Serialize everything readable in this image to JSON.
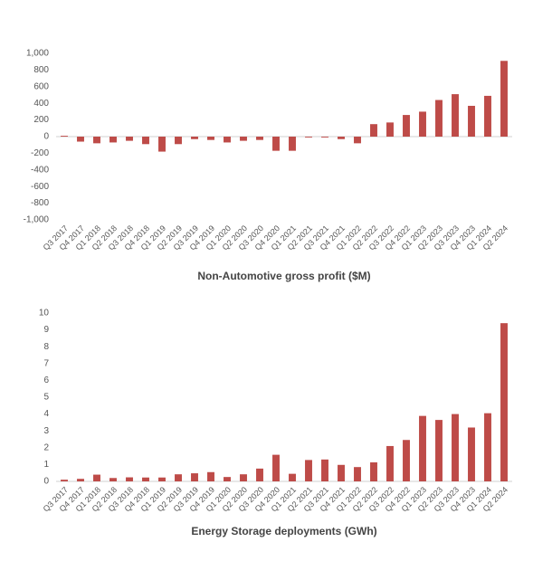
{
  "chart_data": [
    {
      "type": "bar",
      "title": "Non-Automotive gross profit ($M)",
      "categories": [
        "Q3 2017",
        "Q4 2017",
        "Q1 2018",
        "Q2 2018",
        "Q3 2018",
        "Q4 2018",
        "Q1 2019",
        "Q2 2019",
        "Q3 2019",
        "Q4 2019",
        "Q1 2020",
        "Q2 2020",
        "Q3 2020",
        "Q4 2020",
        "Q1 2021",
        "Q2 2021",
        "Q3 2021",
        "Q4 2021",
        "Q1 2022",
        "Q2 2022",
        "Q3 2022",
        "Q4 2022",
        "Q1 2023",
        "Q2 2023",
        "Q3 2023",
        "Q4 2023",
        "Q1 2024",
        "Q2 2024"
      ],
      "values": [
        10,
        -60,
        -80,
        -70,
        -50,
        -90,
        -180,
        -90,
        -30,
        -40,
        -70,
        -50,
        -40,
        -170,
        -170,
        -10,
        -10,
        -30,
        -80,
        150,
        170,
        260,
        300,
        440,
        510,
        370,
        490,
        910
      ],
      "color": "#be4b48",
      "ylim": [
        -1000,
        1000
      ],
      "yticks": [
        {
          "value": -1000,
          "label": "-1,000"
        },
        -800,
        -600,
        -400,
        -200,
        0,
        200,
        400,
        600,
        800,
        {
          "value": 1000,
          "label": "1,000"
        }
      ],
      "grid": false
    },
    {
      "type": "bar",
      "title": "Energy Storage deployments (GWh)",
      "categories": [
        "Q3 2017",
        "Q4 2017",
        "Q1 2018",
        "Q2 2018",
        "Q3 2018",
        "Q4 2018",
        "Q1 2019",
        "Q2 2019",
        "Q3 2019",
        "Q4 2019",
        "Q1 2020",
        "Q2 2020",
        "Q3 2020",
        "Q4 2020",
        "Q1 2021",
        "Q2 2021",
        "Q3 2021",
        "Q4 2021",
        "Q1 2022",
        "Q2 2022",
        "Q3 2022",
        "Q4 2022",
        "Q1 2023",
        "Q2 2023",
        "Q3 2023",
        "Q4 2023",
        "Q1 2024",
        "Q2 2024"
      ],
      "values": [
        0.1,
        0.15,
        0.4,
        0.2,
        0.24,
        0.23,
        0.23,
        0.42,
        0.48,
        0.55,
        0.26,
        0.42,
        0.76,
        1.58,
        0.45,
        1.27,
        1.3,
        0.98,
        0.85,
        1.13,
        2.1,
        2.46,
        3.89,
        3.65,
        4.0,
        3.2,
        4.05,
        9.4
      ],
      "color": "#be4b48",
      "ylim": [
        0,
        10
      ],
      "yticks": [
        0,
        1,
        2,
        3,
        4,
        5,
        6,
        7,
        8,
        9,
        10
      ],
      "grid": false
    }
  ]
}
